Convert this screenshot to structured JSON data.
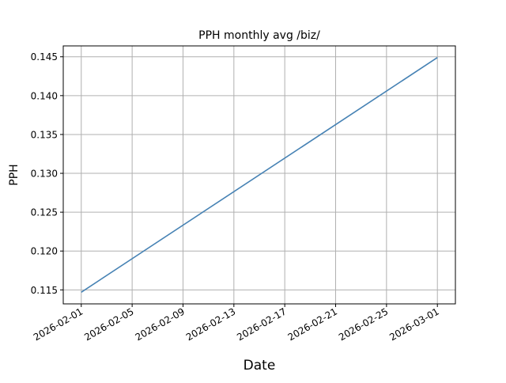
{
  "chart_data": {
    "type": "line",
    "title": "PPH monthly avg /biz/",
    "xlabel": "Date",
    "ylabel": "PPH",
    "x_ticks": [
      "2026-02-01",
      "2026-02-05",
      "2026-02-09",
      "2026-02-13",
      "2026-02-17",
      "2026-02-21",
      "2026-02-25",
      "2026-03-01"
    ],
    "y_ticks": [
      "0.115",
      "0.120",
      "0.125",
      "0.130",
      "0.135",
      "0.140",
      "0.145"
    ],
    "xlim": [
      "2026-01-30T14:00",
      "2026-03-02T10:00"
    ],
    "ylim": [
      0.1132,
      0.1464
    ],
    "grid": true,
    "series": [
      {
        "x": [
          "2026-02-01",
          "2026-03-01"
        ],
        "y": [
          0.1147,
          0.1449
        ],
        "color": "#4682b4"
      }
    ]
  }
}
